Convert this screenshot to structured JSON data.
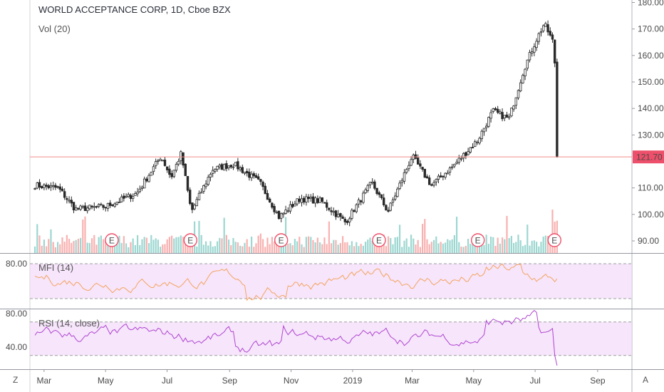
{
  "header": {
    "title": "WORLD ACCEPTANCE CORP, 1D, Cboe BZX",
    "volume_label": "Vol (20)",
    "mfi_label": "MFI (14)",
    "rsi_label": "RSI (14, close)"
  },
  "corners": {
    "left": "Z",
    "right": "A"
  },
  "colors": {
    "up": "#26a69a",
    "down": "#ef5350",
    "candle_body": "#2a2a2a",
    "mfi_line": "#f4a460",
    "rsi_line": "#b045d0",
    "band_fill": "#f3dcfa",
    "price_line": "#f28a8a",
    "price_badge": "#ee4f6a"
  },
  "chart_data": [
    {
      "type": "candlestick",
      "title": "WORLD ACCEPTANCE CORP, 1D, Cboe BZX",
      "ylim": [
        85,
        180
      ],
      "y_ticks": [
        "180.00",
        "170.00",
        "160.00",
        "150.00",
        "140.00",
        "130.00",
        "121.70",
        "110.00",
        "100.00",
        "90.00"
      ],
      "x_ticks": [
        "Mar",
        "May",
        "Jul",
        "Sep",
        "Nov",
        "2019",
        "Mar",
        "May",
        "Jul",
        "Sep"
      ],
      "last_price": "121.70",
      "earnings_markers": [
        "E",
        "E",
        "E",
        "E",
        "E",
        "E"
      ],
      "approx_close_path": [
        {
          "date": "2018-02-20",
          "close": 111
        },
        {
          "date": "2018-03-15",
          "close": 110
        },
        {
          "date": "2018-04-01",
          "close": 102
        },
        {
          "date": "2018-05-01",
          "close": 103
        },
        {
          "date": "2018-06-01",
          "close": 108
        },
        {
          "date": "2018-06-25",
          "close": 122
        },
        {
          "date": "2018-07-05",
          "close": 114
        },
        {
          "date": "2018-07-15",
          "close": 123
        },
        {
          "date": "2018-07-25",
          "close": 101
        },
        {
          "date": "2018-08-15",
          "close": 117
        },
        {
          "date": "2018-09-05",
          "close": 119
        },
        {
          "date": "2018-10-01",
          "close": 112
        },
        {
          "date": "2018-10-20",
          "close": 99
        },
        {
          "date": "2018-11-10",
          "close": 106
        },
        {
          "date": "2018-12-01",
          "close": 105
        },
        {
          "date": "2018-12-25",
          "close": 97
        },
        {
          "date": "2019-01-20",
          "close": 112
        },
        {
          "date": "2019-02-05",
          "close": 101
        },
        {
          "date": "2019-03-01",
          "close": 122
        },
        {
          "date": "2019-03-20",
          "close": 111
        },
        {
          "date": "2019-04-10",
          "close": 118
        },
        {
          "date": "2019-05-05",
          "close": 128
        },
        {
          "date": "2019-05-20",
          "close": 139
        },
        {
          "date": "2019-06-05",
          "close": 136
        },
        {
          "date": "2019-06-20",
          "close": 155
        },
        {
          "date": "2019-07-01",
          "close": 165
        },
        {
          "date": "2019-07-10",
          "close": 172
        },
        {
          "date": "2019-07-20",
          "close": 164
        },
        {
          "date": "2019-07-23",
          "close": 121.7
        }
      ]
    },
    {
      "type": "bar",
      "title": "Vol (20)",
      "note": "daily volume histogram colored by up/down days"
    },
    {
      "type": "line",
      "title": "MFI (14)",
      "y_ticks": [
        "80.00"
      ],
      "band": [
        20,
        80
      ]
    },
    {
      "type": "line",
      "title": "RSI (14, close)",
      "y_ticks": [
        "80.00",
        "40.00"
      ],
      "band": [
        30,
        70
      ]
    }
  ]
}
